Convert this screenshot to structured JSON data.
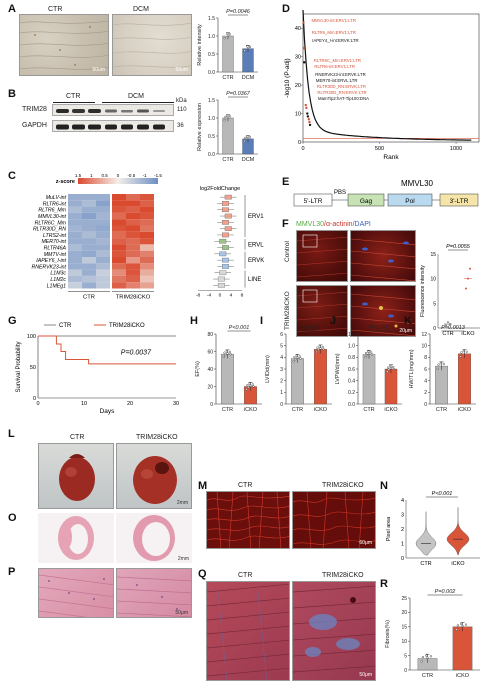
{
  "panels": {
    "A": {
      "label": "A",
      "img_labels": [
        "CTR",
        "DCM"
      ],
      "scale": "50um",
      "chart": {
        "pval": "P=0.0046",
        "ylabel": "Relative intensity",
        "categories": [
          "CTR",
          "DCM"
        ],
        "values": [
          1.0,
          0.65
        ],
        "yticks": [
          "0.0",
          "0.5",
          "1.0",
          "1.5"
        ],
        "ylim": [
          0,
          1.5
        ],
        "colors": [
          "#b8b8b8",
          "#5a7db8"
        ]
      }
    },
    "B": {
      "label": "B",
      "groups": [
        "CTR",
        "DCM"
      ],
      "kda": "kDa",
      "rows": [
        {
          "name": "TRIM28",
          "kda": "110"
        },
        {
          "name": "GAPDH",
          "kda": "36"
        }
      ],
      "chart": {
        "pval": "P=0.0367",
        "ylabel": "Relative expression",
        "categories": [
          "CTR",
          "DCM"
        ],
        "values": [
          1.0,
          0.42
        ],
        "yticks": [
          "0.0",
          "0.5",
          "1.0",
          "1.5"
        ],
        "ylim": [
          0,
          1.5
        ],
        "colors": [
          "#b8b8b8",
          "#5a7db8"
        ]
      }
    },
    "C": {
      "label": "C",
      "zscore_title": "z-score",
      "zscore_ticks": [
        "1.5",
        "1",
        "0.5",
        "0",
        "-0.5",
        "-1",
        "-1.5"
      ],
      "rows": [
        "MuLV-int",
        "RLTR6-int",
        "RLTR6_Mm",
        "MMVL30-int",
        "RLTR6C_Mm",
        "RLTR30D_RN",
        "LTRS2-int",
        "MER70-int",
        "RLTR46A",
        "MMTV-int",
        "IAPEY6_I-int",
        "RNERVK23-int",
        "L1M3c",
        "L1M2c",
        "L1MEg1"
      ],
      "groups": [
        "CTR",
        "TRIM28iCKO"
      ],
      "fc_title": "log2FoldChange",
      "fc_ticks": [
        "-8",
        "-4",
        "0",
        "4",
        "8"
      ],
      "families": [
        "ERV1",
        "ERVL",
        "ERVK",
        "LINE"
      ]
    },
    "D": {
      "label": "D",
      "ylabel": "-log10 (P-adj)",
      "xlabel": "Rank",
      "xticks": [
        "0",
        "500",
        "1000"
      ],
      "yticks": [
        "0",
        "10",
        "20",
        "30",
        "40"
      ],
      "annotations": [
        "MMVL30-int:ERV1:LTR",
        "RLTR6_Mm:ERV1:LTR",
        "IAPEY4_I-int:ERVK:LTR",
        "RLTR6C_Mm:ERV1:LTR",
        "RLTR6-int:ERV1:LTR",
        "RNERVK23-int:ERVK:LTR",
        "MER70-int:ERVL:LTR",
        "RLTR30D_RN:ERVK:LTR",
        "RLTR30D_RN:ERVK:LTR",
        "MamTip2:hAT-Tip100:DNA"
      ]
    },
    "E": {
      "label": "E",
      "title": "MMVL30",
      "segments": [
        "5'-LTR",
        "PBS",
        "Gag",
        "Pol",
        "3'-LTR"
      ]
    },
    "F": {
      "label": "F",
      "title_parts": [
        "MMVL30",
        "/α-actinin",
        "/DAPI"
      ],
      "rows": [
        "Control",
        "TRIM28iCKO"
      ],
      "scale": "20μm",
      "chart": {
        "pval": "P=0.0055",
        "ylabel": "Fluorescence intensity",
        "categories": [
          "CTR",
          "iCKO"
        ],
        "yticks": [
          "0",
          "5",
          "10",
          "15"
        ]
      }
    },
    "G": {
      "label": "G",
      "legend": [
        "CTR",
        "TRIM28iCKO"
      ],
      "ylabel": "Survival Probability",
      "xlabel": "Days",
      "xticks": [
        "0",
        "10",
        "20",
        "30"
      ],
      "yticks": [
        "0",
        "50",
        "100"
      ],
      "pval": "P=0.0037"
    },
    "H": {
      "label": "H",
      "pval": "P<0.001",
      "ylabel": "EF(%)",
      "categories": [
        "CTR",
        "iCKO"
      ],
      "values": [
        57,
        20
      ],
      "yticks": [
        "0",
        "20",
        "40",
        "60",
        "80"
      ],
      "ylim": [
        0,
        80
      ]
    },
    "I": {
      "label": "I",
      "pval": "P<0.001",
      "ylabel": "LVIDd(mm)",
      "categories": [
        "CTR",
        "iCKO"
      ],
      "values": [
        3.9,
        4.7
      ],
      "yticks": [
        "0",
        "1",
        "2",
        "3",
        "4",
        "5",
        "6"
      ],
      "ylim": [
        0,
        6
      ]
    },
    "J": {
      "label": "J",
      "pval": "P<0.001",
      "ylabel": "LVPWd(mm)",
      "categories": [
        "CTR",
        "iCKO"
      ],
      "values": [
        0.85,
        0.6
      ],
      "yticks": [
        "0.0",
        "0.2",
        "0.4",
        "0.6",
        "0.8",
        "1.0",
        "1.2"
      ],
      "ylim": [
        0,
        1.2
      ]
    },
    "K": {
      "label": "K",
      "pval": "P=0.0013",
      "ylabel": "HW/TL(mg/mm)",
      "categories": [
        "CTR",
        "iCKO"
      ],
      "values": [
        6.5,
        8.6
      ],
      "yticks": [
        "0",
        "2",
        "4",
        "6",
        "8",
        "10",
        "12"
      ],
      "ylim": [
        0,
        12
      ]
    },
    "L": {
      "label": "L",
      "groups": [
        "CTR",
        "TRIM28iCKO"
      ],
      "scale": "2mm"
    },
    "M": {
      "label": "M",
      "groups": [
        "CTR",
        "TRIM28iCKO"
      ],
      "scale": "60μm"
    },
    "N": {
      "label": "N",
      "pval": "P<0.001",
      "ylabel": "Pixel area",
      "categories": [
        "CTR",
        "iCKO"
      ],
      "yticks": [
        "0",
        "1",
        "2",
        "3",
        "4"
      ]
    },
    "O": {
      "label": "O",
      "scale": "2mm"
    },
    "P": {
      "label": "P",
      "scale": "50μm"
    },
    "Q": {
      "label": "Q",
      "groups": [
        "CTR",
        "TRIM28iCKO"
      ],
      "scale": "50μm"
    },
    "R": {
      "label": "R",
      "pval": "P=0.002",
      "ylabel": "Fibrosis(%)",
      "categories": [
        "CTR",
        "iCKO"
      ],
      "values": [
        4,
        15
      ],
      "yticks": [
        "0",
        "5",
        "10",
        "15",
        "20",
        "25"
      ],
      "ylim": [
        0,
        25
      ]
    }
  },
  "colors": {
    "ctr_bar": "#b8b8b8",
    "icko_bar": "#d9553a",
    "dcm_bar": "#5a7db8",
    "hm_red": "#d94a2f",
    "hm_blue": "#6d8fc4",
    "hm_white": "#f4efe8"
  }
}
